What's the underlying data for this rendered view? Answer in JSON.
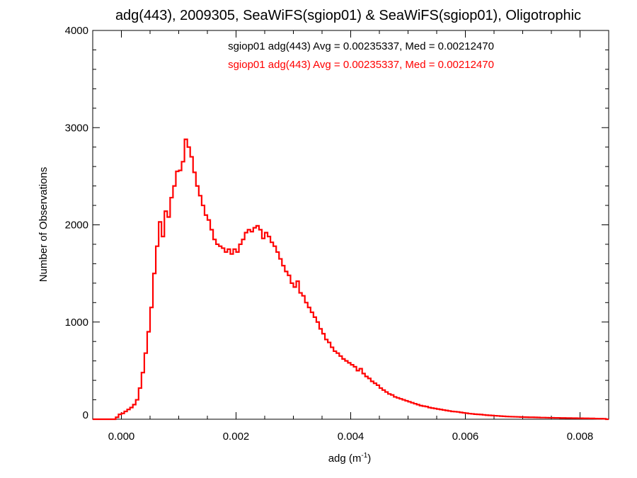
{
  "chart_data": {
    "type": "line",
    "title": "adg(443), 2009305, SeaWiFS(sgiop01) & SeaWiFS(sgiop01), Oligotrophic",
    "xlabel": "adg (m",
    "xlabel_sup": "-1",
    "xlabel_suffix": ")",
    "ylabel": "Number of Observations",
    "xlim": [
      -0.0005,
      0.0085
    ],
    "ylim": [
      0,
      4000
    ],
    "grid": false,
    "x_ticks": [
      0.0,
      0.002,
      0.004,
      0.006,
      0.008
    ],
    "x_tick_labels": [
      "0.000",
      "0.002",
      "0.004",
      "0.006",
      "0.008"
    ],
    "y_ticks": [
      0,
      1000,
      2000,
      3000,
      4000
    ],
    "y_tick_labels": [
      "0",
      "1000",
      "2000",
      "3000",
      "4000"
    ],
    "annotations": [
      {
        "text": "sgiop01 adg(443) Avg = 0.00235337, Med = 0.00212470",
        "color": "#000000"
      },
      {
        "text": "sgiop01 adg(443) Avg = 0.00235337, Med = 0.00212470",
        "color": "#ff0000"
      }
    ],
    "series": [
      {
        "name": "sgiop01 adg(443)",
        "color": "#ff0000",
        "style": "step",
        "points": [
          [
            -0.0005,
            0
          ],
          [
            -0.00015,
            0
          ],
          [
            -0.0001,
            20
          ],
          [
            -5e-05,
            50
          ],
          [
            0.0,
            60
          ],
          [
            5e-05,
            80
          ],
          [
            0.0001,
            100
          ],
          [
            0.00015,
            120
          ],
          [
            0.0002,
            150
          ],
          [
            0.00025,
            200
          ],
          [
            0.0003,
            320
          ],
          [
            0.00035,
            480
          ],
          [
            0.0004,
            680
          ],
          [
            0.00045,
            900
          ],
          [
            0.0005,
            1150
          ],
          [
            0.00055,
            1500
          ],
          [
            0.0006,
            1780
          ],
          [
            0.00065,
            2030
          ],
          [
            0.0007,
            1880
          ],
          [
            0.00075,
            2140
          ],
          [
            0.0008,
            2080
          ],
          [
            0.00085,
            2280
          ],
          [
            0.0009,
            2400
          ],
          [
            0.00095,
            2550
          ],
          [
            0.001,
            2560
          ],
          [
            0.00105,
            2650
          ],
          [
            0.0011,
            2880
          ],
          [
            0.00115,
            2800
          ],
          [
            0.0012,
            2700
          ],
          [
            0.00125,
            2540
          ],
          [
            0.0013,
            2400
          ],
          [
            0.00135,
            2300
          ],
          [
            0.0014,
            2200
          ],
          [
            0.00145,
            2100
          ],
          [
            0.0015,
            2050
          ],
          [
            0.00155,
            1950
          ],
          [
            0.0016,
            1850
          ],
          [
            0.00165,
            1800
          ],
          [
            0.0017,
            1780
          ],
          [
            0.00175,
            1760
          ],
          [
            0.0018,
            1720
          ],
          [
            0.00185,
            1750
          ],
          [
            0.0019,
            1700
          ],
          [
            0.00195,
            1750
          ],
          [
            0.002,
            1720
          ],
          [
            0.00205,
            1800
          ],
          [
            0.0021,
            1850
          ],
          [
            0.00215,
            1920
          ],
          [
            0.0022,
            1950
          ],
          [
            0.00225,
            1930
          ],
          [
            0.0023,
            1970
          ],
          [
            0.00235,
            1990
          ],
          [
            0.0024,
            1950
          ],
          [
            0.00245,
            1860
          ],
          [
            0.0025,
            1920
          ],
          [
            0.00255,
            1880
          ],
          [
            0.0026,
            1820
          ],
          [
            0.00265,
            1780
          ],
          [
            0.0027,
            1720
          ],
          [
            0.00275,
            1650
          ],
          [
            0.0028,
            1580
          ],
          [
            0.00285,
            1520
          ],
          [
            0.0029,
            1480
          ],
          [
            0.00295,
            1400
          ],
          [
            0.003,
            1360
          ],
          [
            0.00305,
            1420
          ],
          [
            0.0031,
            1300
          ],
          [
            0.00315,
            1270
          ],
          [
            0.0032,
            1200
          ],
          [
            0.00325,
            1150
          ],
          [
            0.0033,
            1100
          ],
          [
            0.00335,
            1050
          ],
          [
            0.0034,
            1000
          ],
          [
            0.00345,
            930
          ],
          [
            0.0035,
            880
          ],
          [
            0.00355,
            820
          ],
          [
            0.0036,
            790
          ],
          [
            0.00365,
            740
          ],
          [
            0.0037,
            700
          ],
          [
            0.00375,
            680
          ],
          [
            0.0038,
            650
          ],
          [
            0.00385,
            620
          ],
          [
            0.0039,
            600
          ],
          [
            0.00395,
            580
          ],
          [
            0.004,
            560
          ],
          [
            0.00405,
            540
          ],
          [
            0.0041,
            500
          ],
          [
            0.00415,
            520
          ],
          [
            0.0042,
            470
          ],
          [
            0.00425,
            440
          ],
          [
            0.0043,
            420
          ],
          [
            0.00435,
            390
          ],
          [
            0.0044,
            370
          ],
          [
            0.00445,
            350
          ],
          [
            0.0045,
            320
          ],
          [
            0.00455,
            300
          ],
          [
            0.0046,
            280
          ],
          [
            0.00465,
            260
          ],
          [
            0.0047,
            250
          ],
          [
            0.00475,
            230
          ],
          [
            0.0048,
            220
          ],
          [
            0.00485,
            210
          ],
          [
            0.0049,
            200
          ],
          [
            0.00495,
            190
          ],
          [
            0.005,
            180
          ],
          [
            0.00505,
            170
          ],
          [
            0.0051,
            160
          ],
          [
            0.00515,
            150
          ],
          [
            0.0052,
            140
          ],
          [
            0.00525,
            135
          ],
          [
            0.0053,
            130
          ],
          [
            0.00535,
            120
          ],
          [
            0.0054,
            115
          ],
          [
            0.00545,
            110
          ],
          [
            0.0055,
            105
          ],
          [
            0.00555,
            100
          ],
          [
            0.0056,
            95
          ],
          [
            0.00565,
            90
          ],
          [
            0.0057,
            85
          ],
          [
            0.00575,
            80
          ],
          [
            0.0058,
            78
          ],
          [
            0.00585,
            75
          ],
          [
            0.0059,
            70
          ],
          [
            0.00595,
            66
          ],
          [
            0.006,
            62
          ],
          [
            0.00605,
            58
          ],
          [
            0.0061,
            55
          ],
          [
            0.00615,
            52
          ],
          [
            0.0062,
            50
          ],
          [
            0.00625,
            48
          ],
          [
            0.0063,
            45
          ],
          [
            0.00635,
            42
          ],
          [
            0.0064,
            40
          ],
          [
            0.00645,
            38
          ],
          [
            0.0065,
            36
          ],
          [
            0.00655,
            34
          ],
          [
            0.0066,
            32
          ],
          [
            0.00665,
            30
          ],
          [
            0.0067,
            28
          ],
          [
            0.00675,
            27
          ],
          [
            0.0068,
            26
          ],
          [
            0.00685,
            25
          ],
          [
            0.0069,
            24
          ],
          [
            0.00695,
            23
          ],
          [
            0.007,
            22
          ],
          [
            0.00705,
            21
          ],
          [
            0.0071,
            20
          ],
          [
            0.00715,
            20
          ],
          [
            0.0072,
            19
          ],
          [
            0.00725,
            18
          ],
          [
            0.0073,
            17
          ],
          [
            0.00735,
            17
          ],
          [
            0.0074,
            16
          ],
          [
            0.00745,
            15
          ],
          [
            0.0075,
            15
          ],
          [
            0.00755,
            14
          ],
          [
            0.0076,
            14
          ],
          [
            0.00765,
            13
          ],
          [
            0.0077,
            13
          ],
          [
            0.00775,
            12
          ],
          [
            0.0078,
            12
          ],
          [
            0.00785,
            11
          ],
          [
            0.0079,
            11
          ],
          [
            0.00795,
            10
          ],
          [
            0.008,
            10
          ],
          [
            0.00805,
            9
          ],
          [
            0.0081,
            9
          ],
          [
            0.00815,
            8
          ],
          [
            0.0082,
            8
          ],
          [
            0.00825,
            7
          ],
          [
            0.0083,
            6
          ],
          [
            0.00835,
            6
          ],
          [
            0.0084,
            5
          ],
          [
            0.00845,
            0
          ]
        ]
      }
    ]
  }
}
